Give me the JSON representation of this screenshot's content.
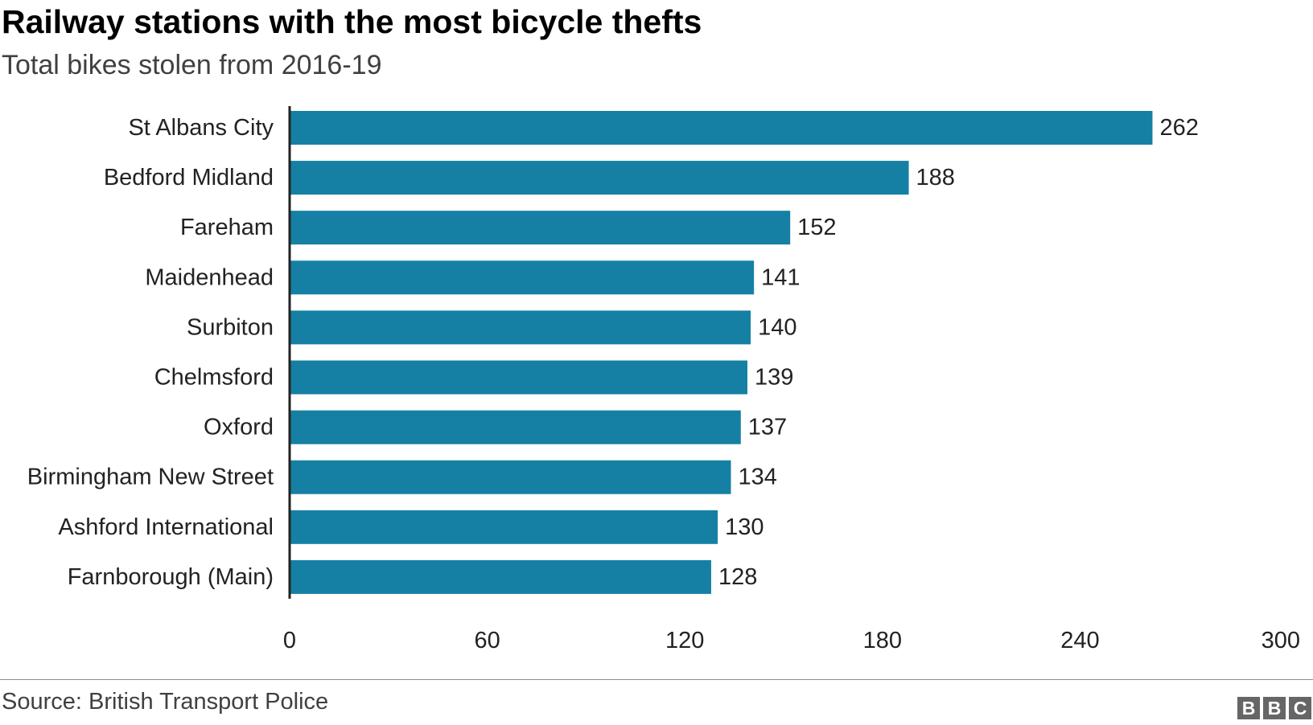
{
  "title": "Railway stations with the most bicycle thefts",
  "subtitle": "Total bikes stolen from 2016-19",
  "source": "Source: British Transport Police",
  "logo": {
    "text": "BBC",
    "letters": [
      "B",
      "B",
      "C"
    ]
  },
  "colors": {
    "bar": "#1580a3",
    "axis": "#222222",
    "label": "#222222"
  },
  "chart_data": {
    "type": "bar",
    "orientation": "horizontal",
    "categories": [
      "St Albans City",
      "Bedford Midland",
      "Fareham",
      "Maidenhead",
      "Surbiton",
      "Chelmsford",
      "Oxford",
      "Birmingham New Street",
      "Ashford International",
      "Farnborough (Main)"
    ],
    "values": [
      262,
      188,
      152,
      141,
      140,
      139,
      137,
      134,
      130,
      128
    ],
    "title": "Railway stations with the most bicycle thefts",
    "subtitle": "Total bikes stolen from 2016-19",
    "xlabel": "",
    "ylabel": "",
    "xlim": [
      0,
      300
    ],
    "xticks": [
      0,
      60,
      120,
      180,
      240,
      300
    ],
    "data_labels": true,
    "grid": false,
    "legend": "none"
  }
}
